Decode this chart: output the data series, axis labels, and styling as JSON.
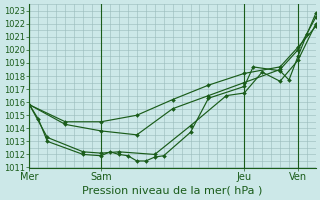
{
  "title": "Pression niveau de la mer( hPa )",
  "bg_color": "#cce8e8",
  "grid_color": "#99bbbb",
  "line_color": "#1a5c1a",
  "ylim": [
    1011,
    1023.5
  ],
  "yticks": [
    1011,
    1012,
    1013,
    1014,
    1015,
    1016,
    1017,
    1018,
    1019,
    1020,
    1021,
    1022,
    1023
  ],
  "xlim": [
    0,
    96
  ],
  "xtick_labels": [
    "Mer",
    "Sam",
    "Jeu",
    "Ven"
  ],
  "xtick_pos": [
    0,
    24,
    72,
    90
  ],
  "vline_pos": [
    0,
    24,
    72,
    90
  ],
  "series": [
    {
      "x": [
        0,
        3,
        6,
        18,
        24,
        27,
        30,
        33,
        36,
        39,
        42,
        45,
        54,
        60,
        72,
        75,
        84,
        87,
        90,
        93,
        96
      ],
      "y": [
        1015.8,
        1014.7,
        1013.0,
        1012.0,
        1011.9,
        1012.2,
        1012.0,
        1011.9,
        1011.5,
        1011.5,
        1011.8,
        1011.9,
        1013.7,
        1016.3,
        1017.2,
        1018.7,
        1018.4,
        1017.7,
        1019.5,
        1021.2,
        1022.8
      ]
    },
    {
      "x": [
        0,
        6,
        18,
        24,
        30,
        42,
        54,
        66,
        72,
        78,
        84,
        90,
        96
      ],
      "y": [
        1015.8,
        1013.3,
        1012.2,
        1012.1,
        1012.2,
        1012.0,
        1014.2,
        1016.5,
        1016.7,
        1018.3,
        1017.6,
        1019.2,
        1022.0
      ]
    },
    {
      "x": [
        0,
        12,
        24,
        36,
        48,
        60,
        72,
        84,
        90,
        96
      ],
      "y": [
        1015.8,
        1014.3,
        1013.8,
        1013.5,
        1015.5,
        1016.5,
        1017.5,
        1018.5,
        1020.0,
        1022.5
      ]
    },
    {
      "x": [
        0,
        12,
        24,
        36,
        48,
        60,
        72,
        84,
        90,
        96
      ],
      "y": [
        1015.8,
        1014.5,
        1014.5,
        1015.0,
        1016.2,
        1017.3,
        1018.2,
        1018.7,
        1020.2,
        1021.8
      ]
    }
  ]
}
